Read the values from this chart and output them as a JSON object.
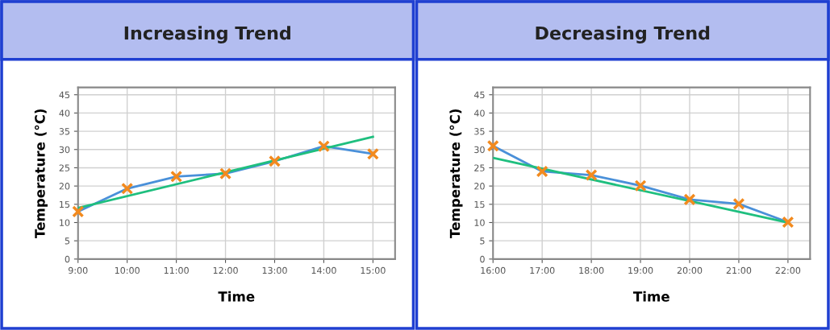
{
  "chart_data": [
    {
      "type": "line",
      "title": "Increasing Trend",
      "xlabel": "Time",
      "ylabel": "Temperature (°C)",
      "x": [
        9,
        10,
        11,
        12,
        13,
        14,
        15
      ],
      "series": [
        {
          "color": "#4a90d9",
          "marker": "none",
          "values": [
            13,
            19.3,
            22.6,
            23.4,
            26.8,
            30.9,
            28.8
          ]
        },
        {
          "type": "scatter",
          "color": "#f28a1e",
          "marker": "cross",
          "values": [
            13,
            19.3,
            22.6,
            23.4,
            26.8,
            30.9,
            28.8
          ]
        },
        {
          "color": "#1fbf7f",
          "marker": "none",
          "x": [
            9,
            15
          ],
          "values": [
            14,
            33.5
          ]
        }
      ],
      "xlim": [
        9,
        15.45
      ],
      "xticks": [
        {
          "value": 9,
          "label": "9:00"
        },
        {
          "value": 10,
          "label": "10:00"
        },
        {
          "value": 11,
          "label": "11:00"
        },
        {
          "value": 12,
          "label": "12:00"
        },
        {
          "value": 13,
          "label": "13:00"
        },
        {
          "value": 14,
          "label": "14:00"
        },
        {
          "value": 15,
          "label": "15:00"
        }
      ],
      "ylim": [
        0,
        47
      ],
      "yticks": [
        0,
        5,
        10,
        15,
        20,
        25,
        30,
        35,
        40,
        45
      ],
      "grid": true
    },
    {
      "type": "line",
      "title": "Decreasing Trend",
      "xlabel": "Time",
      "ylabel": "Temperature (°C)",
      "x": [
        16,
        17,
        18,
        19,
        20,
        21,
        22
      ],
      "series": [
        {
          "color": "#4a90d9",
          "marker": "none",
          "values": [
            31,
            24,
            23,
            20.1,
            16.3,
            15.1,
            10.1
          ]
        },
        {
          "type": "scatter",
          "color": "#f28a1e",
          "marker": "cross",
          "values": [
            31,
            24,
            23,
            20.1,
            16.3,
            15.1,
            10.1
          ]
        },
        {
          "color": "#1fbf7f",
          "marker": "none",
          "x": [
            16,
            22
          ],
          "values": [
            27.7,
            10
          ]
        }
      ],
      "xlim": [
        16,
        22.45
      ],
      "xticks": [
        {
          "value": 16,
          "label": "16:00"
        },
        {
          "value": 17,
          "label": "17:00"
        },
        {
          "value": 18,
          "label": "18:00"
        },
        {
          "value": 19,
          "label": "19:00"
        },
        {
          "value": 20,
          "label": "20:00"
        },
        {
          "value": 21,
          "label": "21:00"
        },
        {
          "value": 22,
          "label": "22:00"
        }
      ],
      "ylim": [
        0,
        47
      ],
      "yticks": [
        0,
        5,
        10,
        15,
        20,
        25,
        30,
        35,
        40,
        45
      ],
      "grid": true
    }
  ]
}
